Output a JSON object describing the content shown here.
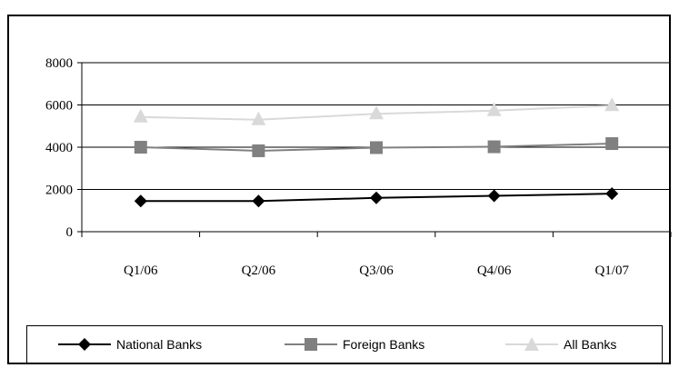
{
  "chart_data": {
    "type": "line",
    "title": "",
    "xlabel": "",
    "ylabel": "",
    "categories": [
      "Q1/06",
      "Q2/06",
      "Q3/06",
      "Q4/06",
      "Q1/07"
    ],
    "ylim": [
      0,
      8000
    ],
    "yticks": [
      0,
      2000,
      4000,
      6000,
      8000
    ],
    "ytick_labels": [
      "0",
      "2000",
      "4000",
      "6000",
      "8000"
    ],
    "grid": "horizontal",
    "legend_position": "bottom",
    "series": [
      {
        "name": "National Banks",
        "values": [
          1450,
          1450,
          1600,
          1700,
          1800
        ],
        "color": "#000000",
        "marker": "diamond"
      },
      {
        "name": "Foreign Banks",
        "values": [
          4000,
          3830,
          3980,
          4020,
          4170
        ],
        "color": "#808080",
        "marker": "square"
      },
      {
        "name": "All Banks",
        "values": [
          5430,
          5300,
          5580,
          5730,
          5970
        ],
        "color": "#d9d9d9",
        "marker": "triangle"
      }
    ]
  }
}
